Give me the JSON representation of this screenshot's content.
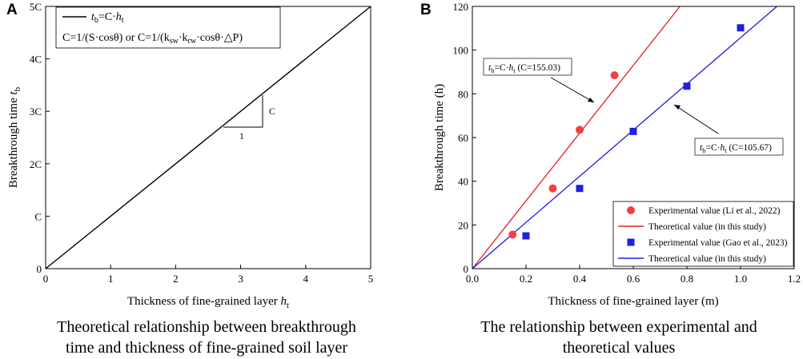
{
  "panel_a": {
    "letter": "A",
    "legend_label": "t_b=C·h_t",
    "formula_line": "C=1/(S·cosθ) or C=1/(k_sw·k_rw·cosθ·△P)",
    "triangle_rise_label": "C",
    "triangle_run_label": "1",
    "caption_line1": "Theoretical relationship between breakthrough",
    "caption_line2": "time and thickness of fine-grained soil layer"
  },
  "panel_b": {
    "letter": "B",
    "annotation_red": "t_b=C·h_t (C=155.03)",
    "annotation_blue": "t_b=C·h_t (C=105.67)",
    "caption_line1": "The relationship between experimental and",
    "caption_line2": "theoretical values"
  },
  "chart_data": [
    {
      "type": "line",
      "xlabel": "Thickness of fine-grained layer h_t",
      "ylabel": "Breakthrough time t_b",
      "xlim": [
        0,
        5
      ],
      "ylim": [
        0,
        5
      ],
      "x_ticks": [
        "0",
        "1",
        "2",
        "3",
        "4",
        "5"
      ],
      "y_ticks": [
        "0",
        "C",
        "2C",
        "3C",
        "4C",
        "5C"
      ],
      "series": [
        {
          "name": "t_b=C·h_t",
          "color": "#000000",
          "x": [
            0,
            5
          ],
          "y": [
            0,
            5
          ]
        }
      ]
    },
    {
      "type": "scatter",
      "xlabel": "Thickness of fine-grained layer (m)",
      "ylabel": "Breakthrough time (h)",
      "xlim": [
        0,
        1.2
      ],
      "ylim": [
        0,
        120
      ],
      "x_ticks": [
        "0.0",
        "0.2",
        "0.4",
        "0.6",
        "0.8",
        "1.0",
        "1.2"
      ],
      "y_ticks": [
        "0",
        "20",
        "40",
        "60",
        "80",
        "100",
        "120"
      ],
      "legend_position": "bottom-right",
      "series": [
        {
          "name": "Experimental value (Li et al., 2022)",
          "kind": "scatter",
          "marker": "circle",
          "color": "#f04040",
          "x": [
            0.15,
            0.3,
            0.4,
            0.53
          ],
          "y": [
            15.6,
            36.7,
            63.5,
            88.5
          ]
        },
        {
          "name": "Theoretical value (in this study)",
          "kind": "line",
          "color": "#e32020",
          "slope": 155.03,
          "x_range": [
            0,
            0.775
          ]
        },
        {
          "name": "Experimental value (Gao et al., 2023)",
          "kind": "scatter",
          "marker": "square",
          "color": "#1f1fe0",
          "x": [
            0.2,
            0.4,
            0.6,
            0.8,
            1.0
          ],
          "y": [
            15.0,
            36.7,
            62.8,
            83.5,
            110.2
          ]
        },
        {
          "name": "Theoretical value (in this study)",
          "kind": "line",
          "color": "#1f1fe0",
          "slope": 105.67,
          "x_range": [
            0,
            1.136
          ]
        }
      ]
    }
  ]
}
